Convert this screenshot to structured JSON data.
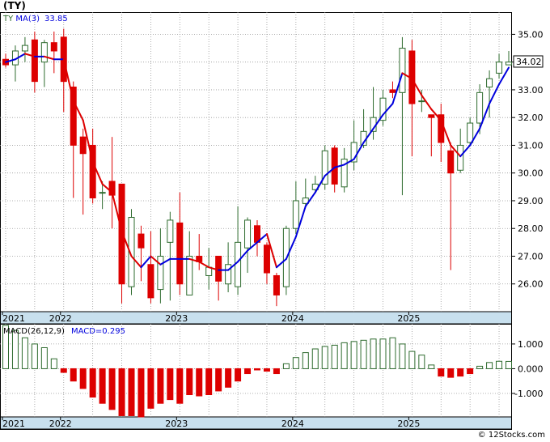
{
  "title": "(TY)",
  "footer": "© 12Stocks.com",
  "colors": {
    "up": "#2e6b2e",
    "down": "#dd0000",
    "ma_up": "#0000dd",
    "ma_down": "#dd0000",
    "axis_bg": "#c8e0ee",
    "grid": "#999999"
  },
  "chart_data": [
    {
      "type": "candlestick",
      "legend": {
        "ticker": "TY",
        "ma_label": "MA(3)",
        "ma_value": "33.85"
      },
      "last_price_label": "34.02",
      "ylim": [
        25.0,
        35.8
      ],
      "y_ticks": [
        "35.00",
        "34.00",
        "33.00",
        "32.00",
        "31.00",
        "30.00",
        "29.00",
        "28.00",
        "27.00",
        "26.00"
      ],
      "x_tick_labels": [
        {
          "label": "2021",
          "index": 0
        },
        {
          "label": "2022",
          "index": 6
        },
        {
          "label": "2023",
          "index": 18
        },
        {
          "label": "2024",
          "index": 30
        },
        {
          "label": "2025",
          "index": 42
        }
      ],
      "candles": [
        [
          34.1,
          33.9,
          34.3,
          33.8
        ],
        [
          33.9,
          34.4,
          34.6,
          33.3
        ],
        [
          34.4,
          34.6,
          34.9,
          34.0
        ],
        [
          34.8,
          33.3,
          35.1,
          32.9
        ],
        [
          34.0,
          34.7,
          34.8,
          33.1
        ],
        [
          34.7,
          34.4,
          35.1,
          33.6
        ],
        [
          34.9,
          33.3,
          35.2,
          32.2
        ],
        [
          33.1,
          31.0,
          33.3,
          29.1
        ],
        [
          31.3,
          30.7,
          31.6,
          28.5
        ],
        [
          31.0,
          29.1,
          31.6,
          28.9
        ],
        [
          29.3,
          29.3,
          29.7,
          28.7
        ],
        [
          29.7,
          29.2,
          31.3,
          28.0
        ],
        [
          29.6,
          26.0,
          29.6,
          25.3
        ],
        [
          25.9,
          28.4,
          28.7,
          25.6
        ],
        [
          27.8,
          27.3,
          28.1,
          26.1
        ],
        [
          26.7,
          25.5,
          27.9,
          25.3
        ],
        [
          25.8,
          27.0,
          28.0,
          25.3
        ],
        [
          27.5,
          28.3,
          28.6,
          25.4
        ],
        [
          28.2,
          26.0,
          29.3,
          25.6
        ],
        [
          25.6,
          27.0,
          27.9,
          25.6
        ],
        [
          27.0,
          26.8,
          27.8,
          26.5
        ],
        [
          26.3,
          26.6,
          27.3,
          25.8
        ],
        [
          27.0,
          26.1,
          27.0,
          25.4
        ],
        [
          26.0,
          26.7,
          27.5,
          25.7
        ],
        [
          25.9,
          27.5,
          28.8,
          25.6
        ],
        [
          27.3,
          28.3,
          28.4,
          26.4
        ],
        [
          28.1,
          27.5,
          28.3,
          27.0
        ],
        [
          27.4,
          26.4,
          27.5,
          26.0
        ],
        [
          26.3,
          25.6,
          26.4,
          25.2
        ],
        [
          25.9,
          28.0,
          28.1,
          25.6
        ],
        [
          28.0,
          29.0,
          29.7,
          27.8
        ],
        [
          28.9,
          29.1,
          29.8,
          28.8
        ],
        [
          29.4,
          29.6,
          29.9,
          29.3
        ],
        [
          29.6,
          30.8,
          31.0,
          29.4
        ],
        [
          30.9,
          29.6,
          31.0,
          29.3
        ],
        [
          29.5,
          30.5,
          30.9,
          29.3
        ],
        [
          30.4,
          31.1,
          31.9,
          30.1
        ],
        [
          31.0,
          31.5,
          32.3,
          30.9
        ],
        [
          31.5,
          32.0,
          33.1,
          31.2
        ],
        [
          31.9,
          32.7,
          33.0,
          31.7
        ],
        [
          33.0,
          32.9,
          33.3,
          32.7
        ],
        [
          32.9,
          34.5,
          34.9,
          29.2
        ],
        [
          34.4,
          32.5,
          34.8,
          30.6
        ],
        [
          32.6,
          32.6,
          33.0,
          32.2
        ],
        [
          32.1,
          32.0,
          32.1,
          30.6
        ],
        [
          32.1,
          31.1,
          32.5,
          30.4
        ],
        [
          30.8,
          30.0,
          31.1,
          26.5
        ],
        [
          30.1,
          31.0,
          31.6,
          30.0
        ],
        [
          31.1,
          31.8,
          32.0,
          31.0
        ],
        [
          31.8,
          32.9,
          33.2,
          31.4
        ],
        [
          33.1,
          33.4,
          33.7,
          32.0
        ],
        [
          33.6,
          34.0,
          34.3,
          33.4
        ],
        [
          33.9,
          34.0,
          34.4,
          33.9
        ]
      ],
      "ma": [
        34.0,
        34.1,
        34.3,
        34.2,
        34.2,
        34.1,
        34.1,
        32.6,
        31.9,
        30.4,
        29.6,
        29.3,
        27.9,
        27.0,
        26.6,
        27.0,
        26.7,
        26.9,
        26.9,
        26.9,
        26.8,
        26.6,
        26.5,
        26.5,
        26.8,
        27.2,
        27.5,
        27.8,
        26.6,
        26.9,
        27.7,
        28.8,
        29.3,
        29.9,
        30.2,
        30.3,
        30.5,
        31.1,
        31.6,
        32.1,
        32.5,
        33.6,
        33.4,
        32.8,
        32.3,
        31.9,
        31.0,
        30.6,
        31.0,
        31.6,
        32.5,
        33.2,
        33.8
      ],
      "macd": {
        "label": "MACD(26,12,9)",
        "value_label": "MACD=0.295",
        "ylim": [
          -1.95,
          1.75
        ],
        "y_ticks": [
          "1.000",
          "0.000",
          "-1.000"
        ],
        "values": [
          1.75,
          1.55,
          1.25,
          1.0,
          0.85,
          0.4,
          -0.15,
          -0.5,
          -0.8,
          -1.15,
          -1.4,
          -1.65,
          -1.9,
          -1.9,
          -1.95,
          -1.6,
          -1.4,
          -1.25,
          -1.4,
          -1.05,
          -1.1,
          -1.05,
          -0.9,
          -0.75,
          -0.5,
          -0.2,
          -0.05,
          -0.1,
          -0.2,
          0.2,
          0.45,
          0.65,
          0.8,
          0.9,
          0.95,
          1.05,
          1.1,
          1.15,
          1.2,
          1.2,
          1.25,
          1.0,
          0.7,
          0.55,
          0.15,
          -0.3,
          -0.35,
          -0.3,
          -0.2,
          0.1,
          0.25,
          0.3,
          0.295
        ]
      }
    }
  ]
}
